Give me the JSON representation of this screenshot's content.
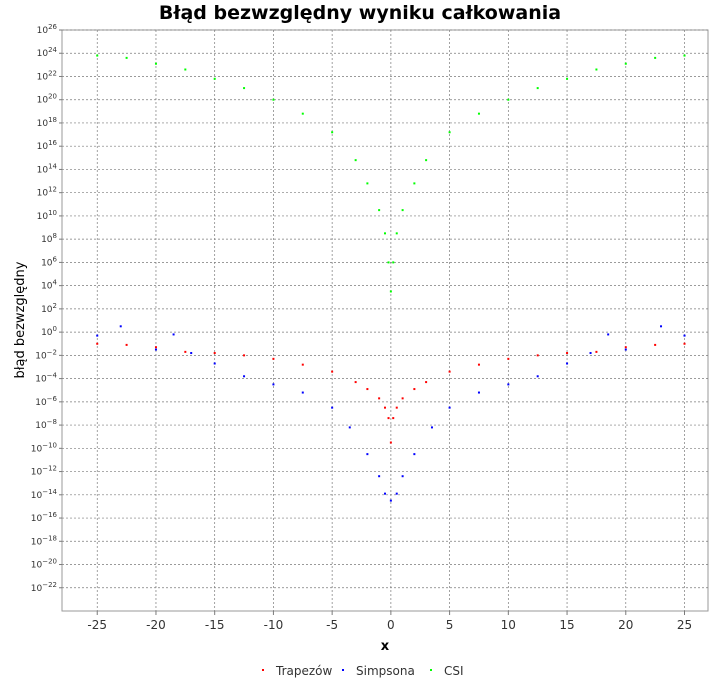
{
  "chart_data": {
    "type": "scatter",
    "title": "Błąd bezwzględny wyniku całkowania",
    "xlabel": "x",
    "ylabel": "błąd bezwzględny",
    "xlim": [
      -28,
      27
    ],
    "ylim_exponent": [
      -24,
      26
    ],
    "y_scale": "log10",
    "x_ticks": [
      -25,
      -20,
      -15,
      -10,
      -5,
      0,
      5,
      10,
      15,
      20,
      25
    ],
    "y_tick_exponents": [
      -22,
      -20,
      -18,
      -16,
      -14,
      -12,
      -10,
      -8,
      -6,
      -4,
      -2,
      0,
      2,
      4,
      6,
      8,
      10,
      12,
      14,
      16,
      18,
      20,
      22,
      24,
      26
    ],
    "grid": true,
    "legend_position": "bottom",
    "series": [
      {
        "name": "Trapezów",
        "color": "#ff0000",
        "marker": "dot",
        "x": [
          -25,
          -22.5,
          -20,
          -17.5,
          -15,
          -12.5,
          -10,
          -7.5,
          -5,
          -3,
          -2,
          -1,
          -0.5,
          -0.2,
          0,
          0.2,
          0.5,
          1,
          2,
          3,
          5,
          7.5,
          10,
          12.5,
          15,
          17.5,
          20,
          22.5,
          25
        ],
        "y_log10": [
          -1,
          -1.1,
          -1.3,
          -1.7,
          -1.8,
          -2,
          -2.3,
          -2.8,
          -3.4,
          -4.3,
          -4.9,
          -5.7,
          -6.5,
          -7.4,
          -9.5,
          -7.4,
          -6.5,
          -5.7,
          -4.9,
          -4.3,
          -3.4,
          -2.8,
          -2.3,
          -2,
          -1.8,
          -1.7,
          -1.3,
          -1.1,
          -1
        ]
      },
      {
        "name": "Simpsona",
        "color": "#0000ff",
        "marker": "dot",
        "x": [
          -25,
          -23,
          -20,
          -18.5,
          -17,
          -15,
          -12.5,
          -10,
          -7.5,
          -5,
          -3.5,
          -2,
          -1,
          -0.5,
          0,
          0.5,
          1,
          2,
          3.5,
          5,
          7.5,
          10,
          12.5,
          15,
          17,
          18.5,
          20,
          23,
          25
        ],
        "y_log10": [
          -0.3,
          0.5,
          -1.5,
          -0.2,
          -1.8,
          -2.7,
          -3.8,
          -4.5,
          -5.2,
          -6.5,
          -8.2,
          -10.5,
          -12.4,
          -13.9,
          -14.5,
          -13.9,
          -12.4,
          -10.5,
          -8.2,
          -6.5,
          -5.2,
          -4.5,
          -3.8,
          -2.7,
          -1.8,
          -0.2,
          -1.5,
          0.5,
          -0.3
        ]
      },
      {
        "name": "CSI",
        "color": "#00ff00",
        "marker": "dot",
        "x": [
          -25,
          -22.5,
          -20,
          -17.5,
          -15,
          -12.5,
          -10,
          -7.5,
          -5,
          -3,
          -2,
          -1,
          -0.5,
          -0.2,
          0,
          0.2,
          0.5,
          1,
          2,
          3,
          5,
          7.5,
          10,
          12.5,
          15,
          17.5,
          20,
          22.5,
          25
        ],
        "y_log10": [
          23.8,
          23.6,
          23.1,
          22.6,
          21.8,
          21,
          20,
          18.8,
          17.2,
          14.8,
          12.8,
          10.5,
          8.5,
          6,
          3.5,
          6,
          8.5,
          10.5,
          12.8,
          14.8,
          17.2,
          18.8,
          20,
          21,
          21.8,
          22.6,
          23.1,
          23.6,
          23.8
        ]
      }
    ]
  }
}
